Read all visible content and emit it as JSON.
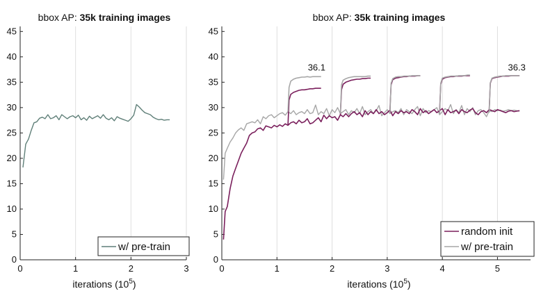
{
  "chart_data": [
    {
      "type": "line",
      "title_prefix": "bbox AP: ",
      "title_bold": "35k training images",
      "xlabel": "iterations (10",
      "xlabel_sup": "5",
      "xlabel_suffix": ")",
      "xlim": [
        0,
        3
      ],
      "ylim": [
        0,
        46
      ],
      "xticks": [
        0,
        1,
        2,
        3
      ],
      "yticks": [
        0,
        5,
        10,
        15,
        20,
        25,
        30,
        35,
        40,
        45
      ],
      "grid": "vertical",
      "legend_position": "bottom-right",
      "series": [
        {
          "name": "w/ pre-train",
          "color": "#5f7f78",
          "x": [
            0.05,
            0.1,
            0.15,
            0.2,
            0.25,
            0.3,
            0.35,
            0.4,
            0.45,
            0.5,
            0.55,
            0.6,
            0.65,
            0.7,
            0.75,
            0.8,
            0.85,
            0.9,
            0.95,
            1.0,
            1.05,
            1.1,
            1.15,
            1.2,
            1.25,
            1.3,
            1.35,
            1.4,
            1.45,
            1.5,
            1.55,
            1.6,
            1.65,
            1.7,
            1.75,
            1.8,
            1.85,
            1.9,
            1.95,
            2.0,
            2.05,
            2.1,
            2.15,
            2.2,
            2.25,
            2.3,
            2.35,
            2.4,
            2.45,
            2.5,
            2.55,
            2.6,
            2.65,
            2.7
          ],
          "y": [
            18.2,
            22.8,
            23.8,
            25.5,
            27.0,
            27.2,
            27.9,
            28.1,
            27.8,
            28.6,
            27.8,
            28.0,
            28.4,
            27.6,
            28.6,
            28.2,
            27.8,
            28.2,
            28.4,
            28.0,
            28.5,
            27.6,
            28.0,
            27.5,
            28.3,
            27.8,
            28.1,
            28.4,
            27.9,
            28.6,
            27.9,
            27.6,
            28.0,
            27.4,
            28.2,
            27.9,
            27.7,
            27.5,
            27.3,
            27.8,
            28.5,
            30.6,
            30.1,
            29.5,
            29.0,
            28.8,
            28.6,
            28.1,
            27.8,
            27.6,
            27.7,
            27.5,
            27.6,
            27.6
          ]
        }
      ]
    },
    {
      "type": "line",
      "title_prefix": "bbox AP: ",
      "title_bold": "35k training images",
      "xlabel": "iterations (10",
      "xlabel_sup": "5",
      "xlabel_suffix": ")",
      "xlim": [
        0,
        5.6
      ],
      "ylim": [
        0,
        46
      ],
      "xticks": [
        0,
        1,
        2,
        3,
        4,
        5
      ],
      "yticks": [
        0,
        5,
        10,
        15,
        20,
        25,
        30,
        35,
        40,
        45
      ],
      "grid": "vertical",
      "legend_position": "bottom-right",
      "annotations": [
        {
          "text": "36.1",
          "x": 1.72,
          "y": 37.3
        },
        {
          "text": "36.3",
          "x": 5.35,
          "y": 37.3
        }
      ],
      "series": [
        {
          "name": "random init",
          "color": "#7a1f5c",
          "x": [
            0.03,
            0.06,
            0.1,
            0.15,
            0.2,
            0.25,
            0.3,
            0.35,
            0.4,
            0.45,
            0.5,
            0.55,
            0.6,
            0.65,
            0.7,
            0.75,
            0.8,
            0.85,
            0.9,
            0.95,
            1.0,
            1.05,
            1.1,
            1.15,
            1.2,
            1.25,
            1.3,
            1.35,
            1.4,
            1.45,
            1.5,
            1.55,
            1.6,
            1.65,
            1.7,
            1.75,
            1.8,
            1.85,
            1.9,
            1.95,
            2.0,
            2.05,
            2.1,
            2.15,
            2.2,
            2.25,
            2.3,
            2.35,
            2.4,
            2.45,
            2.5,
            2.55,
            2.6,
            2.65,
            2.7,
            2.75,
            2.8,
            2.85,
            2.9,
            2.95,
            3.0,
            3.05,
            3.1,
            3.15,
            3.2,
            3.25,
            3.3,
            3.35,
            3.4,
            3.45,
            3.5,
            3.55,
            3.6,
            3.65,
            3.7,
            3.75,
            3.8,
            3.85,
            3.9,
            3.95,
            4.0,
            4.05,
            4.1,
            4.15,
            4.2,
            4.25,
            4.3,
            4.35,
            4.4,
            4.45,
            4.5,
            4.55,
            4.6,
            4.65,
            4.7,
            4.75,
            4.8,
            4.85,
            4.9,
            4.95,
            5.0,
            5.05,
            5.1,
            5.15,
            5.2,
            5.25,
            5.3,
            5.35,
            5.4
          ],
          "y": [
            4.0,
            9.5,
            10.5,
            14.0,
            16.5,
            18.0,
            19.5,
            21.0,
            22.0,
            23.0,
            24.5,
            25.0,
            25.2,
            25.8,
            26.0,
            25.5,
            26.4,
            26.2,
            26.0,
            26.5,
            26.2,
            26.6,
            26.3,
            26.8,
            26.5,
            27.0,
            27.2,
            26.8,
            27.5,
            27.0,
            27.2,
            27.8,
            26.8,
            27.0,
            27.5,
            28.0,
            27.2,
            28.5,
            27.8,
            28.4,
            28.0,
            28.2,
            27.5,
            28.6,
            28.2,
            28.8,
            28.2,
            28.8,
            29.2,
            28.6,
            29.0,
            28.2,
            29.4,
            28.6,
            29.2,
            28.8,
            29.6,
            28.8,
            29.2,
            28.6,
            29.0,
            29.5,
            28.4,
            29.2,
            28.8,
            29.4,
            29.0,
            29.2,
            28.8,
            29.6,
            29.2,
            28.6,
            29.8,
            29.0,
            29.4,
            28.8,
            29.2,
            29.6,
            29.0,
            29.4,
            29.8,
            28.6,
            29.6,
            29.0,
            29.2,
            29.5,
            28.8,
            29.6,
            29.2,
            29.0,
            29.5,
            29.8,
            29.0,
            28.6,
            29.2,
            29.4,
            29.0,
            29.6,
            29.4,
            29.2,
            29.6,
            29.4,
            29.2,
            29.0,
            29.3,
            29.4,
            29.2,
            29.3,
            29.4
          ]
        },
        {
          "name": "w/ pre-train",
          "color": "#a6a6a6",
          "x": [
            0.03,
            0.06,
            0.1,
            0.15,
            0.2,
            0.25,
            0.3,
            0.35,
            0.4,
            0.45,
            0.5,
            0.55,
            0.6,
            0.65,
            0.7,
            0.75,
            0.8,
            0.85,
            0.9,
            0.95,
            1.0,
            1.05,
            1.1,
            1.15,
            1.2,
            1.25,
            1.3,
            1.35,
            1.4,
            1.45,
            1.5,
            1.55,
            1.6,
            1.65,
            1.7,
            1.75,
            1.8,
            1.85,
            1.9,
            1.95,
            2.0,
            2.05,
            2.1,
            2.15,
            2.2,
            2.25,
            2.3,
            2.35,
            2.4,
            2.45,
            2.5,
            2.55,
            2.6,
            2.65,
            2.7,
            2.75,
            2.8,
            2.85,
            2.9,
            2.95,
            3.0,
            3.05,
            3.1,
            3.15,
            3.2,
            3.25,
            3.3,
            3.35,
            3.4,
            3.45,
            3.5,
            3.55,
            3.6,
            3.65,
            3.7,
            3.75,
            3.8,
            3.85,
            3.9,
            3.95,
            4.0,
            4.05,
            4.1,
            4.15,
            4.2,
            4.25,
            4.3,
            4.35,
            4.4,
            4.45,
            4.5,
            4.55,
            4.6,
            4.65,
            4.7,
            4.75,
            4.8,
            4.85,
            4.9,
            4.95,
            5.0,
            5.05,
            5.1,
            5.15,
            5.2,
            5.25,
            5.3,
            5.35,
            5.4
          ],
          "y": [
            15.8,
            21.0,
            22.0,
            23.2,
            24.0,
            25.0,
            25.6,
            26.0,
            25.5,
            26.8,
            27.0,
            27.2,
            27.0,
            27.6,
            26.8,
            28.2,
            27.8,
            28.4,
            28.6,
            28.0,
            28.4,
            28.8,
            29.0,
            28.5,
            29.2,
            28.8,
            29.4,
            28.6,
            29.0,
            29.2,
            28.8,
            29.6,
            28.8,
            29.0,
            30.5,
            28.6,
            29.2,
            28.8,
            29.8,
            28.4,
            29.6,
            29.0,
            30.0,
            28.8,
            29.2,
            29.6,
            28.6,
            29.4,
            29.0,
            29.8,
            28.8,
            30.2,
            28.6,
            29.2,
            29.6,
            28.8,
            29.4,
            30.4,
            28.4,
            29.0,
            29.6,
            28.8,
            29.2,
            29.4,
            29.0,
            29.8,
            28.6,
            29.6,
            29.2,
            28.8,
            29.6,
            30.2,
            28.4,
            29.8,
            29.0,
            29.4,
            29.2,
            29.6,
            30.0,
            28.6,
            29.2,
            29.8,
            29.4,
            30.6,
            28.8,
            29.6,
            29.0,
            30.4,
            28.6,
            29.8,
            29.2,
            30.0,
            28.6,
            29.4,
            29.6,
            29.0,
            28.2,
            29.4,
            29.2,
            29.6,
            29.4,
            29.5,
            29.3,
            29.4,
            29.6,
            29.4,
            29.5,
            29.4,
            29.3
          ]
        }
      ],
      "branches": [
        {
          "series": "random init",
          "start": 1.2,
          "x": [
            1.2,
            1.22,
            1.25,
            1.3,
            1.35,
            1.4,
            1.45,
            1.5,
            1.55,
            1.6,
            1.65,
            1.7,
            1.75,
            1.8
          ],
          "y": [
            26.5,
            31.5,
            32.6,
            33.0,
            33.2,
            33.4,
            33.5,
            33.5,
            33.6,
            33.7,
            33.7,
            33.8,
            33.8,
            33.8
          ]
        },
        {
          "series": "w/ pre-train",
          "start": 1.2,
          "x": [
            1.2,
            1.22,
            1.25,
            1.3,
            1.35,
            1.4,
            1.45,
            1.5,
            1.55,
            1.6,
            1.65,
            1.7,
            1.75,
            1.8
          ],
          "y": [
            29.2,
            34.0,
            35.2,
            35.6,
            35.8,
            35.9,
            36.0,
            36.0,
            36.1,
            36.0,
            36.1,
            36.1,
            36.1,
            36.1
          ]
        },
        {
          "series": "random init",
          "start": 2.15,
          "x": [
            2.15,
            2.17,
            2.2,
            2.25,
            2.3,
            2.35,
            2.4,
            2.45,
            2.5,
            2.55,
            2.6,
            2.65,
            2.7
          ],
          "y": [
            28.6,
            33.5,
            34.6,
            35.0,
            35.2,
            35.4,
            35.5,
            35.6,
            35.6,
            35.7,
            35.7,
            35.8,
            35.8
          ]
        },
        {
          "series": "w/ pre-train",
          "start": 2.15,
          "x": [
            2.15,
            2.17,
            2.2,
            2.25,
            2.3,
            2.35,
            2.4,
            2.45,
            2.5,
            2.55,
            2.6,
            2.65,
            2.7
          ],
          "y": [
            28.8,
            34.5,
            35.4,
            35.7,
            35.9,
            36.0,
            36.1,
            36.1,
            36.1,
            36.1,
            36.1,
            36.2,
            36.2
          ]
        },
        {
          "series": "random init",
          "start": 3.05,
          "x": [
            3.05,
            3.07,
            3.1,
            3.15,
            3.2,
            3.25,
            3.3,
            3.35,
            3.4,
            3.45,
            3.5,
            3.55,
            3.6
          ],
          "y": [
            29.5,
            34.5,
            35.5,
            35.8,
            35.9,
            36.0,
            36.1,
            36.1,
            36.2,
            36.2,
            36.2,
            36.3,
            36.3
          ]
        },
        {
          "series": "w/ pre-train",
          "start": 3.05,
          "x": [
            3.05,
            3.07,
            3.1,
            3.15,
            3.2,
            3.25,
            3.3,
            3.35,
            3.4,
            3.45,
            3.5,
            3.55,
            3.6
          ],
          "y": [
            28.8,
            34.8,
            35.7,
            36.0,
            36.1,
            36.1,
            36.2,
            36.2,
            36.2,
            36.3,
            36.3,
            36.3,
            36.3
          ]
        },
        {
          "series": "random init",
          "start": 3.95,
          "x": [
            3.95,
            3.97,
            4.0,
            4.05,
            4.1,
            4.15,
            4.2,
            4.25,
            4.3,
            4.35,
            4.4,
            4.45,
            4.5
          ],
          "y": [
            29.4,
            34.6,
            35.6,
            35.9,
            36.0,
            36.1,
            36.1,
            36.2,
            36.2,
            36.2,
            36.3,
            36.3,
            36.3
          ]
        },
        {
          "series": "w/ pre-train",
          "start": 3.95,
          "x": [
            3.95,
            3.97,
            4.0,
            4.05,
            4.1,
            4.15,
            4.2,
            4.25,
            4.3,
            4.35,
            4.4,
            4.45,
            4.5
          ],
          "y": [
            28.6,
            34.8,
            35.8,
            36.0,
            36.1,
            36.2,
            36.2,
            36.2,
            36.3,
            36.3,
            36.3,
            36.4,
            36.4
          ]
        },
        {
          "series": "random init",
          "start": 4.85,
          "x": [
            4.85,
            4.87,
            4.9,
            4.95,
            5.0,
            5.05,
            5.1,
            5.15,
            5.2,
            5.25,
            5.3,
            5.35,
            5.4
          ],
          "y": [
            29.5,
            34.8,
            35.7,
            35.9,
            36.0,
            36.1,
            36.2,
            36.2,
            36.2,
            36.3,
            36.3,
            36.3,
            36.3
          ]
        },
        {
          "series": "w/ pre-train",
          "start": 4.85,
          "x": [
            4.85,
            4.87,
            4.9,
            4.95,
            5.0,
            5.05,
            5.1,
            5.15,
            5.2,
            5.25,
            5.3,
            5.35,
            5.4
          ],
          "y": [
            29.0,
            34.9,
            35.8,
            36.0,
            36.1,
            36.2,
            36.2,
            36.3,
            36.3,
            36.3,
            36.3,
            36.3,
            36.3
          ]
        }
      ]
    }
  ]
}
